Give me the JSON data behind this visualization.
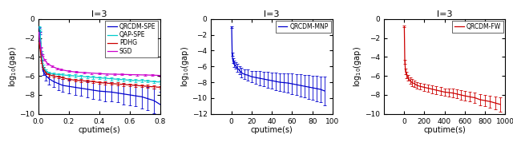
{
  "title": "l=3",
  "plot1": {
    "xlim": [
      0,
      0.8
    ],
    "ylim": [
      -10,
      0
    ],
    "yticks": [
      0,
      -2,
      -4,
      -6,
      -8,
      -10
    ],
    "xticks": [
      0,
      0.2,
      0.4,
      0.6,
      0.8
    ],
    "series_order": [
      "QRCDM-SPE",
      "QAP-SPE",
      "PDHG",
      "SGD"
    ],
    "series": {
      "QRCDM-SPE": {
        "color": "#0000cd",
        "x": [
          0.005,
          0.01,
          0.02,
          0.03,
          0.05,
          0.07,
          0.1,
          0.13,
          0.16,
          0.2,
          0.24,
          0.28,
          0.32,
          0.36,
          0.4,
          0.44,
          0.48,
          0.52,
          0.56,
          0.6,
          0.64,
          0.68,
          0.72,
          0.76,
          0.8
        ],
        "y": [
          -0.9,
          -1.5,
          -4.0,
          -5.5,
          -6.0,
          -6.3,
          -6.6,
          -6.8,
          -7.0,
          -7.1,
          -7.2,
          -7.3,
          -7.4,
          -7.5,
          -7.6,
          -7.65,
          -7.7,
          -7.8,
          -7.9,
          -8.0,
          -8.1,
          -8.2,
          -8.4,
          -8.6,
          -9.0
        ],
        "yerr": [
          0.05,
          0.1,
          0.3,
          0.4,
          0.5,
          0.6,
          0.6,
          0.7,
          0.7,
          0.7,
          0.8,
          0.8,
          0.85,
          0.9,
          0.9,
          1.0,
          1.0,
          1.0,
          1.1,
          1.1,
          1.1,
          1.2,
          1.2,
          1.3,
          1.3
        ]
      },
      "QAP-SPE": {
        "color": "#00cccc",
        "x": [
          0.005,
          0.01,
          0.02,
          0.03,
          0.05,
          0.07,
          0.1,
          0.13,
          0.16,
          0.2,
          0.24,
          0.28,
          0.32,
          0.36,
          0.4,
          0.44,
          0.48,
          0.52,
          0.56,
          0.6,
          0.64,
          0.68,
          0.72,
          0.76,
          0.8
        ],
        "y": [
          -0.8,
          -1.2,
          -3.5,
          -5.0,
          -5.5,
          -5.7,
          -5.8,
          -5.85,
          -5.9,
          -5.95,
          -6.0,
          -6.05,
          -6.1,
          -6.15,
          -6.2,
          -6.25,
          -6.3,
          -6.35,
          -6.4,
          -6.45,
          -6.5,
          -6.5,
          -6.55,
          -6.6,
          -6.65
        ],
        "yerr": [
          0.05,
          0.05,
          0.1,
          0.15,
          0.15,
          0.15,
          0.15,
          0.15,
          0.15,
          0.15,
          0.15,
          0.15,
          0.15,
          0.15,
          0.15,
          0.15,
          0.15,
          0.15,
          0.15,
          0.15,
          0.15,
          0.15,
          0.15,
          0.15,
          0.15
        ]
      },
      "PDHG": {
        "color": "#cc0000",
        "x": [
          0.005,
          0.01,
          0.02,
          0.03,
          0.05,
          0.07,
          0.1,
          0.13,
          0.16,
          0.2,
          0.24,
          0.28,
          0.32,
          0.36,
          0.4,
          0.44,
          0.48,
          0.52,
          0.56,
          0.6,
          0.64,
          0.68,
          0.72,
          0.76,
          0.8
        ],
        "y": [
          -2.5,
          -3.0,
          -4.5,
          -5.2,
          -5.7,
          -5.9,
          -6.0,
          -6.1,
          -6.2,
          -6.35,
          -6.45,
          -6.5,
          -6.55,
          -6.6,
          -6.7,
          -6.75,
          -6.8,
          -6.85,
          -6.9,
          -6.95,
          -7.0,
          -7.05,
          -7.1,
          -7.15,
          -7.2
        ],
        "yerr": [
          0.05,
          0.05,
          0.1,
          0.1,
          0.15,
          0.15,
          0.15,
          0.15,
          0.15,
          0.15,
          0.15,
          0.15,
          0.15,
          0.15,
          0.15,
          0.15,
          0.15,
          0.15,
          0.15,
          0.15,
          0.15,
          0.15,
          0.15,
          0.15,
          0.15
        ]
      },
      "SGD": {
        "color": "#cc00cc",
        "x": [
          0.003,
          0.007,
          0.015,
          0.025,
          0.04,
          0.06,
          0.09,
          0.12,
          0.15,
          0.2,
          0.25,
          0.3,
          0.35,
          0.4,
          0.45,
          0.5,
          0.55,
          0.6,
          0.65,
          0.7,
          0.75,
          0.8
        ],
        "y": [
          -1.4,
          -2.2,
          -3.0,
          -3.8,
          -4.3,
          -4.7,
          -5.0,
          -5.2,
          -5.35,
          -5.5,
          -5.6,
          -5.65,
          -5.7,
          -5.75,
          -5.8,
          -5.82,
          -5.84,
          -5.86,
          -5.88,
          -5.9,
          -5.92,
          -5.95
        ],
        "yerr": [
          0.05,
          0.05,
          0.08,
          0.08,
          0.08,
          0.08,
          0.08,
          0.08,
          0.08,
          0.08,
          0.08,
          0.08,
          0.08,
          0.08,
          0.08,
          0.08,
          0.08,
          0.08,
          0.08,
          0.08,
          0.08,
          0.08
        ]
      }
    }
  },
  "plot2": {
    "xlim": [
      -20,
      100
    ],
    "ylim": [
      -12,
      0
    ],
    "yticks": [
      0,
      -2,
      -4,
      -6,
      -8,
      -10,
      -12
    ],
    "xticks": [
      0,
      20,
      40,
      60,
      80,
      100
    ],
    "series_order": [
      "QRCDM-MNP"
    ],
    "series": {
      "QRCDM-MNP": {
        "color": "#0000cd",
        "x": [
          0.3,
          0.8,
          1.5,
          2.5,
          4,
          6,
          8,
          10,
          13,
          16,
          20,
          24,
          28,
          32,
          36,
          40,
          44,
          48,
          52,
          56,
          60,
          64,
          68,
          72,
          76,
          80,
          84,
          88,
          92
        ],
        "y": [
          -1.0,
          -4.5,
          -5.3,
          -5.7,
          -5.9,
          -6.2,
          -6.5,
          -6.8,
          -7.0,
          -7.1,
          -7.3,
          -7.4,
          -7.5,
          -7.6,
          -7.7,
          -7.8,
          -7.9,
          -8.0,
          -8.05,
          -8.1,
          -8.2,
          -8.3,
          -8.4,
          -8.5,
          -8.6,
          -8.7,
          -8.8,
          -8.9,
          -9.1
        ],
        "yerr": [
          0.1,
          0.2,
          0.3,
          0.4,
          0.4,
          0.5,
          0.5,
          0.6,
          0.6,
          0.7,
          0.7,
          0.8,
          0.9,
          0.9,
          1.0,
          1.0,
          1.1,
          1.1,
          1.2,
          1.2,
          1.3,
          1.3,
          1.4,
          1.4,
          1.5,
          1.5,
          1.6,
          1.6,
          1.8
        ]
      }
    }
  },
  "plot3": {
    "xlim": [
      -200,
      1000
    ],
    "ylim": [
      -10,
      0
    ],
    "yticks": [
      0,
      -2,
      -4,
      -6,
      -8,
      -10
    ],
    "xticks": [
      0,
      200,
      400,
      600,
      800,
      1000
    ],
    "series_order": [
      "QRCDM-FW"
    ],
    "series": {
      "QRCDM-FW": {
        "color": "#cc0000",
        "x": [
          3,
          8,
          15,
          25,
          40,
          60,
          80,
          100,
          130,
          160,
          200,
          240,
          280,
          320,
          360,
          400,
          440,
          480,
          520,
          560,
          600,
          650,
          700,
          750,
          800,
          850,
          900,
          950
        ],
        "y": [
          -0.8,
          -4.5,
          -5.5,
          -5.9,
          -6.2,
          -6.5,
          -6.7,
          -6.8,
          -7.0,
          -7.1,
          -7.2,
          -7.3,
          -7.4,
          -7.5,
          -7.6,
          -7.7,
          -7.75,
          -7.8,
          -7.9,
          -8.0,
          -8.1,
          -8.2,
          -8.3,
          -8.5,
          -8.6,
          -8.7,
          -8.85,
          -9.0
        ],
        "yerr": [
          0.1,
          0.2,
          0.3,
          0.3,
          0.3,
          0.35,
          0.35,
          0.35,
          0.35,
          0.35,
          0.35,
          0.4,
          0.4,
          0.4,
          0.4,
          0.4,
          0.45,
          0.45,
          0.45,
          0.5,
          0.5,
          0.5,
          0.55,
          0.6,
          0.6,
          0.65,
          0.7,
          0.75
        ]
      }
    }
  }
}
